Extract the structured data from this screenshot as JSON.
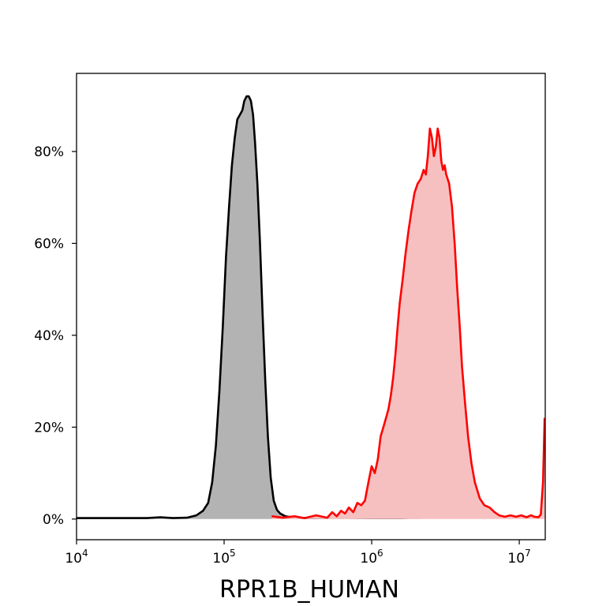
{
  "chart_data": {
    "type": "area",
    "title": "",
    "xlabel": "RPR1B_HUMAN",
    "ylabel": "",
    "x_scale": "log",
    "xlim": [
      10000,
      15000000
    ],
    "ylim": [
      -4.5,
      97
    ],
    "grid": false,
    "legend": "none",
    "x_ticks": [
      {
        "value": 10000,
        "base": "10",
        "exp": "4"
      },
      {
        "value": 100000,
        "base": "10",
        "exp": "5"
      },
      {
        "value": 1000000,
        "base": "10",
        "exp": "6"
      },
      {
        "value": 10000000,
        "base": "10",
        "exp": "7"
      }
    ],
    "y_ticks": [
      {
        "value": 0,
        "label": "0%"
      },
      {
        "value": 20,
        "label": "20%"
      },
      {
        "value": 40,
        "label": "40%"
      },
      {
        "value": 60,
        "label": "60%"
      },
      {
        "value": 80,
        "label": "80%"
      }
    ],
    "series": [
      {
        "line_color": "#000000",
        "fill_color": "#b3b3b3",
        "points": [
          [
            10000,
            0.2
          ],
          [
            20000,
            0.2
          ],
          [
            30000,
            0.2
          ],
          [
            37000,
            0.4
          ],
          [
            45000,
            0.2
          ],
          [
            56000,
            0.3
          ],
          [
            65000,
            0.8
          ],
          [
            72000,
            1.8
          ],
          [
            78000,
            3.5
          ],
          [
            83000,
            8
          ],
          [
            88000,
            16
          ],
          [
            93000,
            28
          ],
          [
            98000,
            42
          ],
          [
            103000,
            57
          ],
          [
            108000,
            68
          ],
          [
            113000,
            77
          ],
          [
            118000,
            83
          ],
          [
            123000,
            87
          ],
          [
            128000,
            88
          ],
          [
            133000,
            89
          ],
          [
            137000,
            91
          ],
          [
            142000,
            92
          ],
          [
            147000,
            92
          ],
          [
            152000,
            91
          ],
          [
            157000,
            88
          ],
          [
            162000,
            82
          ],
          [
            168000,
            73
          ],
          [
            175000,
            60
          ],
          [
            182000,
            45
          ],
          [
            190000,
            30
          ],
          [
            198000,
            18
          ],
          [
            207000,
            9
          ],
          [
            217000,
            4
          ],
          [
            228000,
            2
          ],
          [
            240000,
            1.2
          ],
          [
            260000,
            0.6
          ],
          [
            300000,
            0.3
          ],
          [
            400000,
            0.2
          ],
          [
            600000,
            0.3
          ],
          [
            1000000,
            0.2
          ],
          [
            1600000,
            0.2
          ],
          [
            2200000,
            0.4
          ]
        ]
      },
      {
        "line_color": "#ff0000",
        "fill_color": "#f7c0c0",
        "points": [
          [
            210000,
            0.6
          ],
          [
            250000,
            0.3
          ],
          [
            300000,
            0.6
          ],
          [
            350000,
            0.2
          ],
          [
            420000,
            0.8
          ],
          [
            500000,
            0.3
          ],
          [
            540000,
            1.5
          ],
          [
            580000,
            0.6
          ],
          [
            620000,
            1.8
          ],
          [
            660000,
            1.2
          ],
          [
            700000,
            2.5
          ],
          [
            750000,
            1.5
          ],
          [
            800000,
            3.5
          ],
          [
            850000,
            3
          ],
          [
            900000,
            4
          ],
          [
            950000,
            8
          ],
          [
            1000000,
            11.5
          ],
          [
            1050000,
            10
          ],
          [
            1100000,
            13
          ],
          [
            1150000,
            18
          ],
          [
            1200000,
            20
          ],
          [
            1250000,
            22
          ],
          [
            1300000,
            24
          ],
          [
            1350000,
            27
          ],
          [
            1400000,
            31
          ],
          [
            1450000,
            36
          ],
          [
            1500000,
            42
          ],
          [
            1550000,
            47
          ],
          [
            1620000,
            52
          ],
          [
            1700000,
            58
          ],
          [
            1780000,
            63
          ],
          [
            1860000,
            67
          ],
          [
            1950000,
            71
          ],
          [
            2050000,
            73
          ],
          [
            2150000,
            74
          ],
          [
            2250000,
            76
          ],
          [
            2330000,
            75
          ],
          [
            2400000,
            79
          ],
          [
            2480000,
            85
          ],
          [
            2560000,
            83
          ],
          [
            2640000,
            79
          ],
          [
            2720000,
            81
          ],
          [
            2800000,
            85
          ],
          [
            2880000,
            83
          ],
          [
            2960000,
            78
          ],
          [
            3040000,
            76
          ],
          [
            3120000,
            77
          ],
          [
            3200000,
            75
          ],
          [
            3350000,
            73
          ],
          [
            3500000,
            68
          ],
          [
            3650000,
            60
          ],
          [
            3800000,
            50
          ],
          [
            3950000,
            42
          ],
          [
            4100000,
            33
          ],
          [
            4300000,
            25
          ],
          [
            4500000,
            18
          ],
          [
            4750000,
            12
          ],
          [
            5000000,
            8
          ],
          [
            5400000,
            4.5
          ],
          [
            5800000,
            3
          ],
          [
            6300000,
            2.5
          ],
          [
            6800000,
            1.5
          ],
          [
            7300000,
            0.8
          ],
          [
            8000000,
            0.5
          ],
          [
            8700000,
            0.8
          ],
          [
            9500000,
            0.5
          ],
          [
            10300000,
            0.8
          ],
          [
            11200000,
            0.4
          ],
          [
            12000000,
            0.8
          ],
          [
            12700000,
            0.5
          ],
          [
            13500000,
            0.4
          ],
          [
            14000000,
            1
          ],
          [
            14500000,
            8
          ],
          [
            14850000,
            22
          ]
        ]
      }
    ]
  }
}
